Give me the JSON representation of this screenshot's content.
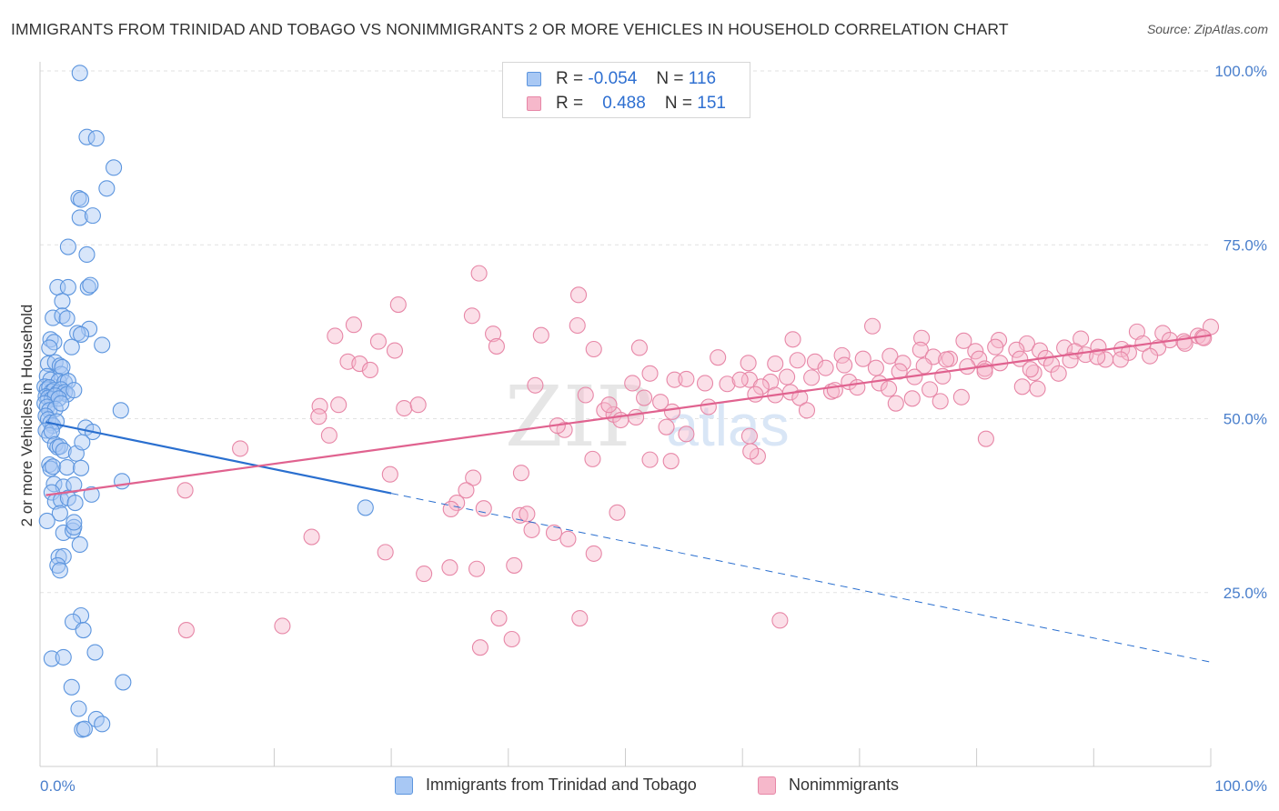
{
  "header": {
    "title": "IMMIGRANTS FROM TRINIDAD AND TOBAGO VS NONIMMIGRANTS 2 OR MORE VEHICLES IN HOUSEHOLD CORRELATION CHART",
    "source": "Source: ZipAtlas.com"
  },
  "watermark": {
    "zip": "ZIP",
    "atlas": "atlas"
  },
  "legend": {
    "r_label": "R =",
    "n_label": "N =",
    "series": [
      {
        "r": "-0.054",
        "n": "116"
      },
      {
        "r": "0.488",
        "n": "151"
      }
    ]
  },
  "colors": {
    "blue_fill": "#a8c8f4",
    "blue_stroke": "#5c95de",
    "blue_line": "#2a6fcf",
    "pink_fill": "#f6b8cb",
    "pink_stroke": "#e787a7",
    "pink_line": "#e0628f",
    "axis_text": "#4a7fcc",
    "grid": "#e2e2e2"
  },
  "chart_data": {
    "type": "scatter",
    "title": "IMMIGRANTS FROM TRINIDAD AND TOBAGO VS NONIMMIGRANTS 2 OR MORE VEHICLES IN HOUSEHOLD CORRELATION CHART",
    "xlabel": "",
    "ylabel": "2 or more Vehicles in Household",
    "x_tick_labels": [
      "0.0%",
      "100.0%"
    ],
    "y_tick_labels": [
      "25.0%",
      "50.0%",
      "75.0%",
      "100.0%"
    ],
    "y_ticks": [
      25,
      50,
      75,
      100
    ],
    "xlim": [
      0,
      100
    ],
    "ylim": [
      0,
      100
    ],
    "grid": true,
    "legend_position": "top-center",
    "series": [
      {
        "name": "Immigrants from Trinidad and Tobago",
        "r": -0.054,
        "n": 116,
        "trend": {
          "x_start": 0.5,
          "y_start": 49.5,
          "x_solid_end": 30,
          "x_end": 100,
          "y_end": 15
        },
        "points": [
          [
            3.4,
            99.7
          ],
          [
            4.0,
            90.5
          ],
          [
            4.8,
            90.3
          ],
          [
            6.3,
            86.1
          ],
          [
            5.7,
            83.1
          ],
          [
            3.3,
            81.7
          ],
          [
            3.5,
            81.5
          ],
          [
            3.4,
            78.9
          ],
          [
            4.5,
            79.2
          ],
          [
            2.4,
            74.7
          ],
          [
            4.0,
            73.6
          ],
          [
            1.5,
            68.9
          ],
          [
            2.4,
            68.9
          ],
          [
            1.9,
            66.9
          ],
          [
            4.1,
            68.9
          ],
          [
            4.3,
            69.2
          ],
          [
            1.1,
            64.5
          ],
          [
            1.9,
            64.8
          ],
          [
            2.3,
            64.4
          ],
          [
            4.2,
            62.9
          ],
          [
            3.2,
            62.3
          ],
          [
            3.5,
            62.1
          ],
          [
            0.9,
            61.4
          ],
          [
            1.2,
            61.0
          ],
          [
            0.8,
            60.2
          ],
          [
            2.7,
            60.3
          ],
          [
            5.3,
            60.6
          ],
          [
            0.7,
            57.9
          ],
          [
            1.3,
            58.1
          ],
          [
            1.7,
            57.6
          ],
          [
            1.8,
            56.4
          ],
          [
            1.9,
            57.4
          ],
          [
            0.6,
            56.1
          ],
          [
            0.9,
            55.6
          ],
          [
            1.6,
            55.4
          ],
          [
            2.1,
            55.2
          ],
          [
            2.4,
            55.4
          ],
          [
            0.4,
            54.6
          ],
          [
            0.6,
            54.2
          ],
          [
            0.8,
            54.5
          ],
          [
            1.0,
            53.9
          ],
          [
            1.2,
            54.1
          ],
          [
            1.5,
            53.7
          ],
          [
            1.8,
            54.2
          ],
          [
            2.1,
            53.8
          ],
          [
            2.3,
            53.5
          ],
          [
            2.9,
            54.1
          ],
          [
            0.5,
            53.2
          ],
          [
            0.7,
            53.0
          ],
          [
            1.0,
            52.8
          ],
          [
            1.3,
            53.3
          ],
          [
            1.6,
            52.9
          ],
          [
            0.4,
            52.2
          ],
          [
            0.6,
            51.7
          ],
          [
            0.8,
            51.2
          ],
          [
            1.3,
            51.4
          ],
          [
            1.8,
            52.2
          ],
          [
            0.5,
            50.4
          ],
          [
            0.7,
            49.9
          ],
          [
            0.9,
            49.4
          ],
          [
            1.1,
            49.0
          ],
          [
            1.4,
            49.6
          ],
          [
            0.5,
            48.3
          ],
          [
            0.8,
            47.6
          ],
          [
            1.0,
            48.2
          ],
          [
            1.3,
            46.3
          ],
          [
            1.5,
            45.9
          ],
          [
            1.7,
            46.0
          ],
          [
            2.0,
            45.4
          ],
          [
            3.9,
            48.7
          ],
          [
            4.5,
            48.1
          ],
          [
            3.1,
            45.0
          ],
          [
            3.6,
            46.6
          ],
          [
            6.9,
            51.2
          ],
          [
            0.8,
            43.4
          ],
          [
            0.9,
            42.8
          ],
          [
            1.1,
            43.1
          ],
          [
            2.3,
            43.0
          ],
          [
            3.5,
            42.9
          ],
          [
            1.2,
            40.6
          ],
          [
            2.0,
            40.2
          ],
          [
            2.9,
            40.5
          ],
          [
            1.0,
            39.4
          ],
          [
            1.3,
            38.1
          ],
          [
            1.8,
            38.3
          ],
          [
            2.4,
            38.6
          ],
          [
            3.0,
            37.9
          ],
          [
            4.4,
            39.1
          ],
          [
            7.0,
            41.0
          ],
          [
            27.8,
            37.2
          ],
          [
            1.7,
            36.4
          ],
          [
            0.6,
            35.3
          ],
          [
            2.0,
            33.6
          ],
          [
            2.8,
            33.9
          ],
          [
            2.9,
            34.4
          ],
          [
            2.9,
            35.1
          ],
          [
            3.4,
            31.9
          ],
          [
            1.6,
            30.1
          ],
          [
            2.0,
            30.2
          ],
          [
            1.5,
            28.9
          ],
          [
            1.7,
            28.2
          ],
          [
            3.5,
            21.7
          ],
          [
            2.8,
            20.8
          ],
          [
            3.7,
            19.6
          ],
          [
            4.7,
            16.4
          ],
          [
            1.0,
            15.5
          ],
          [
            2.0,
            15.7
          ],
          [
            2.7,
            11.4
          ],
          [
            7.1,
            12.1
          ],
          [
            3.3,
            8.3
          ],
          [
            4.8,
            6.8
          ],
          [
            5.3,
            6.1
          ],
          [
            3.6,
            5.3
          ],
          [
            3.8,
            5.4
          ]
        ]
      },
      {
        "name": "Nonimmigrants",
        "r": 0.488,
        "n": 151,
        "trend": {
          "x_start": 0.5,
          "y_start": 39.0,
          "x_end": 100,
          "y_end": 62.0
        },
        "points": [
          [
            37.5,
            70.9
          ],
          [
            46.0,
            67.8
          ],
          [
            30.6,
            66.4
          ],
          [
            36.9,
            64.8
          ],
          [
            26.8,
            63.5
          ],
          [
            45.9,
            63.4
          ],
          [
            38.7,
            62.2
          ],
          [
            42.8,
            62.0
          ],
          [
            25.2,
            61.9
          ],
          [
            28.9,
            61.1
          ],
          [
            39.0,
            60.4
          ],
          [
            47.3,
            60.0
          ],
          [
            51.2,
            60.2
          ],
          [
            30.3,
            59.8
          ],
          [
            64.3,
            61.4
          ],
          [
            71.1,
            63.3
          ],
          [
            75.3,
            61.6
          ],
          [
            78.9,
            61.2
          ],
          [
            81.9,
            61.3
          ],
          [
            84.3,
            60.8
          ],
          [
            88.9,
            61.5
          ],
          [
            87.5,
            60.2
          ],
          [
            93.7,
            62.5
          ],
          [
            95.9,
            62.3
          ],
          [
            98.9,
            61.9
          ],
          [
            100.0,
            63.2
          ],
          [
            75.2,
            59.9
          ],
          [
            79.9,
            59.7
          ],
          [
            81.6,
            60.3
          ],
          [
            83.4,
            59.9
          ],
          [
            85.4,
            59.8
          ],
          [
            88.4,
            59.7
          ],
          [
            90.4,
            60.3
          ],
          [
            92.4,
            60.0
          ],
          [
            94.2,
            60.8
          ],
          [
            96.5,
            61.3
          ],
          [
            97.7,
            61.1
          ],
          [
            99.3,
            61.7
          ],
          [
            26.3,
            58.2
          ],
          [
            27.3,
            57.9
          ],
          [
            66.2,
            58.2
          ],
          [
            68.5,
            59.1
          ],
          [
            70.3,
            58.6
          ],
          [
            72.6,
            59.0
          ],
          [
            73.7,
            58.0
          ],
          [
            76.3,
            58.9
          ],
          [
            77.7,
            58.6
          ],
          [
            80.2,
            58.6
          ],
          [
            82.0,
            58.0
          ],
          [
            83.7,
            58.6
          ],
          [
            85.9,
            58.7
          ],
          [
            89.3,
            59.2
          ],
          [
            91.0,
            58.5
          ],
          [
            93.0,
            59.5
          ],
          [
            95.5,
            60.2
          ],
          [
            97.8,
            60.8
          ],
          [
            99.4,
            61.6
          ],
          [
            57.9,
            58.8
          ],
          [
            60.5,
            58.0
          ],
          [
            62.8,
            57.9
          ],
          [
            64.7,
            58.4
          ],
          [
            67.1,
            57.3
          ],
          [
            68.7,
            57.7
          ],
          [
            71.4,
            57.3
          ],
          [
            73.4,
            56.8
          ],
          [
            75.5,
            57.6
          ],
          [
            77.4,
            58.5
          ],
          [
            79.2,
            57.5
          ],
          [
            80.7,
            57.2
          ],
          [
            84.9,
            56.6
          ],
          [
            86.4,
            57.8
          ],
          [
            88.0,
            58.4
          ],
          [
            90.3,
            58.9
          ],
          [
            92.3,
            58.5
          ],
          [
            94.8,
            59.0
          ],
          [
            28.2,
            57.0
          ],
          [
            52.1,
            56.5
          ],
          [
            54.2,
            55.6
          ],
          [
            55.2,
            55.7
          ],
          [
            58.7,
            55.0
          ],
          [
            60.6,
            55.6
          ],
          [
            62.4,
            55.3
          ],
          [
            63.8,
            56.0
          ],
          [
            65.9,
            55.9
          ],
          [
            69.1,
            55.3
          ],
          [
            71.7,
            55.1
          ],
          [
            74.7,
            56.0
          ],
          [
            77.1,
            56.1
          ],
          [
            80.7,
            56.8
          ],
          [
            84.6,
            57.1
          ],
          [
            87.0,
            56.5
          ],
          [
            50.6,
            55.1
          ],
          [
            56.8,
            55.1
          ],
          [
            59.8,
            55.6
          ],
          [
            61.6,
            54.6
          ],
          [
            64.1,
            53.8
          ],
          [
            67.6,
            53.9
          ],
          [
            69.8,
            54.5
          ],
          [
            72.5,
            54.3
          ],
          [
            76.0,
            54.2
          ],
          [
            83.9,
            54.6
          ],
          [
            42.3,
            54.8
          ],
          [
            46.6,
            53.4
          ],
          [
            51.6,
            53.0
          ],
          [
            53.0,
            52.4
          ],
          [
            61.1,
            53.5
          ],
          [
            62.8,
            53.4
          ],
          [
            64.9,
            53.0
          ],
          [
            67.9,
            54.1
          ],
          [
            73.1,
            52.2
          ],
          [
            74.5,
            52.9
          ],
          [
            76.9,
            52.5
          ],
          [
            78.7,
            53.1
          ],
          [
            85.2,
            54.3
          ],
          [
            25.5,
            52.0
          ],
          [
            31.1,
            51.5
          ],
          [
            32.3,
            52.0
          ],
          [
            23.9,
            51.8
          ],
          [
            48.2,
            51.2
          ],
          [
            49.0,
            50.6
          ],
          [
            50.9,
            50.2
          ],
          [
            54.0,
            51.0
          ],
          [
            57.1,
            51.7
          ],
          [
            65.5,
            51.2
          ],
          [
            23.8,
            50.3
          ],
          [
            48.6,
            52.0
          ],
          [
            44.8,
            48.4
          ],
          [
            53.5,
            48.8
          ],
          [
            44.2,
            49.0
          ],
          [
            49.6,
            49.8
          ],
          [
            24.7,
            47.6
          ],
          [
            55.2,
            47.8
          ],
          [
            60.6,
            47.5
          ],
          [
            80.8,
            47.1
          ],
          [
            17.1,
            45.7
          ],
          [
            52.1,
            44.1
          ],
          [
            47.2,
            44.2
          ],
          [
            61.3,
            44.6
          ],
          [
            60.7,
            45.3
          ],
          [
            53.9,
            43.9
          ],
          [
            29.9,
            42.0
          ],
          [
            37.0,
            41.5
          ],
          [
            41.1,
            42.2
          ],
          [
            12.4,
            39.7
          ],
          [
            36.4,
            39.7
          ],
          [
            35.6,
            37.9
          ],
          [
            37.9,
            37.1
          ],
          [
            41.0,
            36.1
          ],
          [
            35.1,
            37.0
          ],
          [
            49.3,
            36.5
          ],
          [
            41.6,
            36.3
          ],
          [
            42.0,
            34.0
          ],
          [
            43.9,
            33.6
          ],
          [
            45.1,
            32.7
          ],
          [
            23.2,
            33.0
          ],
          [
            29.5,
            30.8
          ],
          [
            47.3,
            30.6
          ],
          [
            32.8,
            27.7
          ],
          [
            35.0,
            28.6
          ],
          [
            37.3,
            28.4
          ],
          [
            40.5,
            28.9
          ],
          [
            20.7,
            20.2
          ],
          [
            12.5,
            19.6
          ],
          [
            46.1,
            21.3
          ],
          [
            63.2,
            21.0
          ],
          [
            39.2,
            21.3
          ],
          [
            40.3,
            18.3
          ],
          [
            37.6,
            17.1
          ]
        ]
      }
    ]
  }
}
